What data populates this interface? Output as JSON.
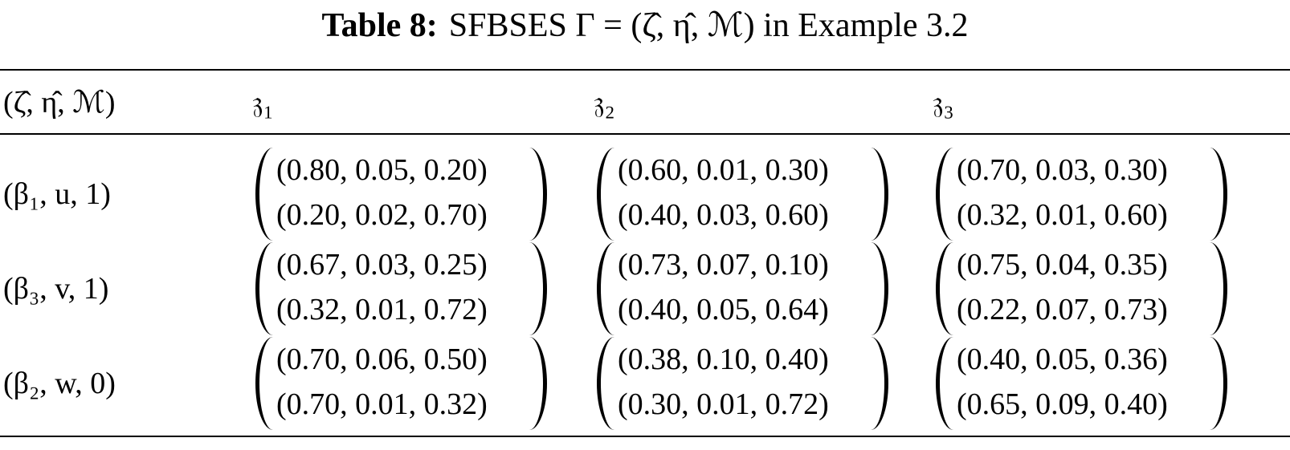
{
  "caption": {
    "label": "Table 8:",
    "text": "SFBSES Γ = (ζ̂, η̂, ℳ) in Example 3.2"
  },
  "table": {
    "header": [
      "(ζ̂, η̂, ℳ)",
      "𝔷₁",
      "𝔷₂",
      "𝔷₃"
    ],
    "rows": [
      {
        "label": "(β₁, u, 1)",
        "cells": [
          [
            "(0.80, 0.05, 0.20)",
            "(0.20, 0.02, 0.70)"
          ],
          [
            "(0.60, 0.01, 0.30)",
            "(0.40, 0.03, 0.60)"
          ],
          [
            "(0.70, 0.03, 0.30)",
            "(0.32, 0.01, 0.60)"
          ]
        ]
      },
      {
        "label": "(β₃, v, 1)",
        "cells": [
          [
            "(0.67, 0.03, 0.25)",
            "(0.32, 0.01, 0.72)"
          ],
          [
            "(0.73, 0.07, 0.10)",
            "(0.40, 0.05, 0.64)"
          ],
          [
            "(0.75, 0.04, 0.35)",
            "(0.22, 0.07, 0.73)"
          ]
        ]
      },
      {
        "label": "(β₂, w, 0)",
        "cells": [
          [
            "(0.70, 0.06, 0.50)",
            "(0.70, 0.01, 0.32)"
          ],
          [
            "(0.38, 0.10, 0.40)",
            "(0.30, 0.01, 0.72)"
          ],
          [
            "(0.40, 0.05, 0.36)",
            "(0.65, 0.09, 0.40)"
          ]
        ]
      }
    ]
  }
}
